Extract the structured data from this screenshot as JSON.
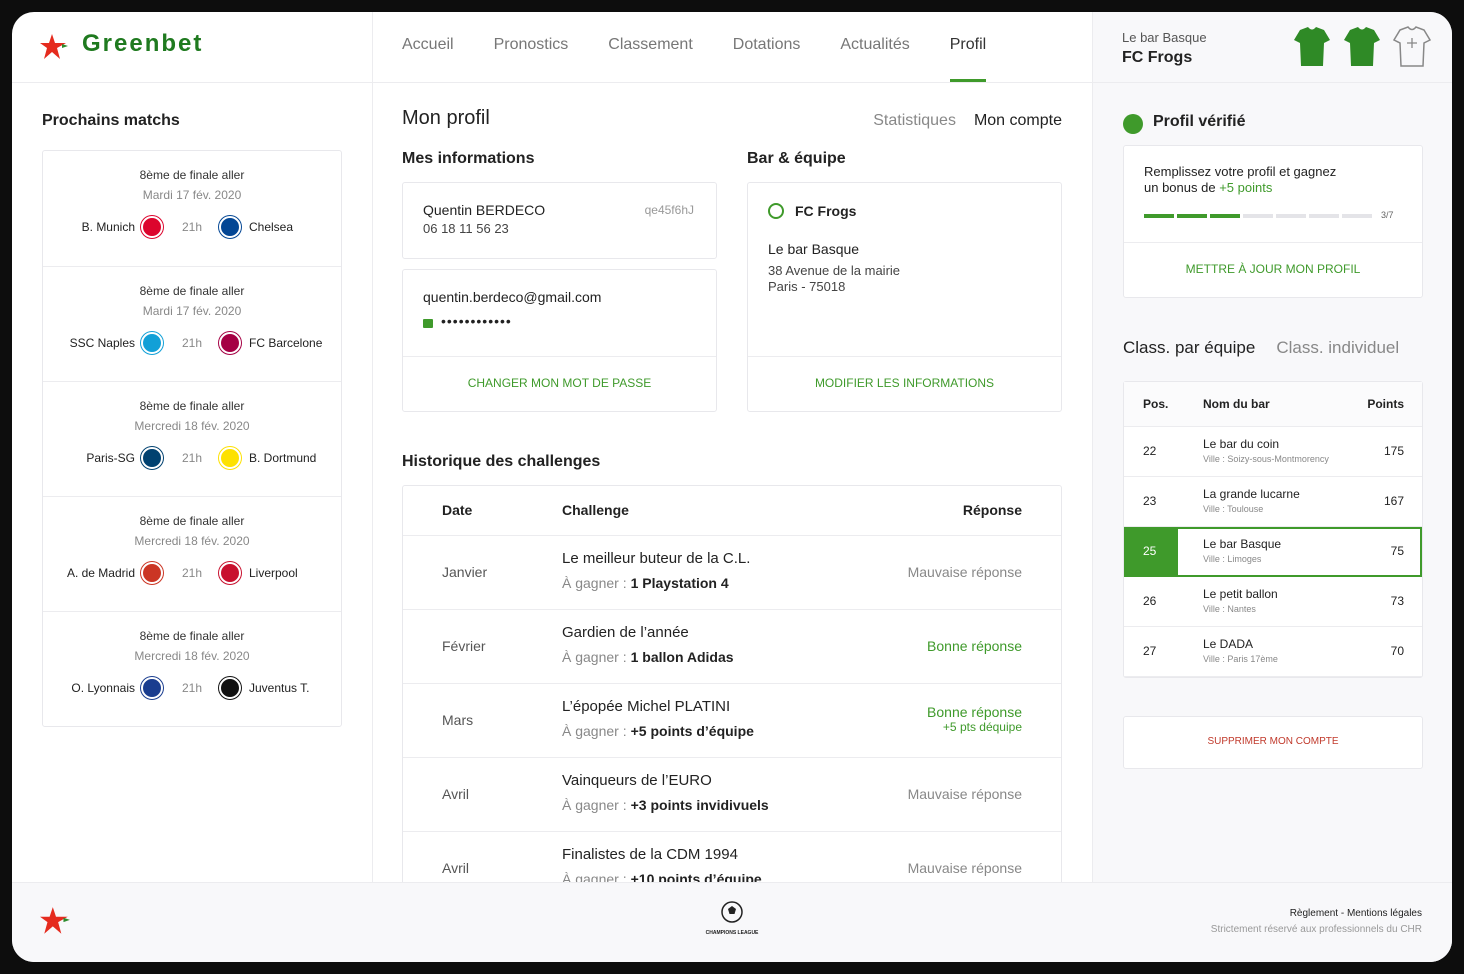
{
  "header": {
    "brand": "Greenbet",
    "nav": [
      "Accueil",
      "Pronostics",
      "Classement",
      "Dotations",
      "Actualités",
      "Profil"
    ],
    "active": 5,
    "user": {
      "bar": "Le bar Basque",
      "team": "FC Frogs"
    }
  },
  "matches": {
    "title": "Prochains matchs",
    "items": [
      {
        "round": "8ème de finale aller",
        "date": "Mardi 17 fév. 2020",
        "home": "B. Munich",
        "time": "21h",
        "away": "Chelsea",
        "home_color": "#dc052d",
        "away_color": "#034694"
      },
      {
        "round": "8ème de finale aller",
        "date": "Mardi 17 fév. 2020",
        "home": "SSC Naples",
        "time": "21h",
        "away": "FC Barcelone",
        "home_color": "#12a0d7",
        "away_color": "#a50044"
      },
      {
        "round": "8ème de finale aller",
        "date": "Mercredi 18 fév. 2020",
        "home": "Paris-SG",
        "time": "21h",
        "away": "B. Dortmund",
        "home_color": "#004170",
        "away_color": "#fde100"
      },
      {
        "round": "8ème de finale aller",
        "date": "Mercredi 18 fév. 2020",
        "home": "A. de Madrid",
        "time": "21h",
        "away": "Liverpool",
        "home_color": "#cb3524",
        "away_color": "#c8102e"
      },
      {
        "round": "8ème de finale aller",
        "date": "Mercredi 18 fév. 2020",
        "home": "O. Lyonnais",
        "time": "21h",
        "away": "Juventus T.",
        "home_color": "#1a3d8f",
        "away_color": "#111111"
      }
    ]
  },
  "profile": {
    "title": "Mon profil",
    "tabs": [
      "Statistiques",
      "Mon compte"
    ],
    "active_tab": 1,
    "info": {
      "title": "Mes informations",
      "name": "Quentin BERDECO",
      "phone": "06 18 11 56 23",
      "id": "qe45f6hJ",
      "email": "quentin.berdeco@gmail.com",
      "password": "••••••••••••",
      "action": "CHANGER MON MOT DE PASSE"
    },
    "bar": {
      "title": "Bar & équipe",
      "team": "FC Frogs",
      "bar": "Le bar Basque",
      "address": "38 Avenue de la mairie",
      "city": "Paris - 75018",
      "action": "MODIFIER LES INFORMATIONS"
    }
  },
  "history": {
    "title": "Historique des challenges",
    "columns": [
      "Date",
      "Challenge",
      "Réponse"
    ],
    "prize_label": "À gagner :",
    "rows": [
      {
        "date": "Janvier",
        "challenge": "Le meilleur buteur de la C.L.",
        "prize": "1 Playstation 4",
        "answer": "Mauvaise réponse",
        "correct": false
      },
      {
        "date": "Février",
        "challenge": "Gardien de l’année",
        "prize": "1 ballon Adidas",
        "answer": "Bonne réponse",
        "correct": true
      },
      {
        "date": "Mars",
        "challenge": "L’épopée Michel PLATINI",
        "prize": "+5 points d’équipe",
        "answer": "Bonne réponse",
        "bonus": "+5 pts déquipe",
        "correct": true
      },
      {
        "date": "Avril",
        "challenge": "Vainqueurs de l’EURO",
        "prize": "+3 points invidivuels",
        "answer": "Mauvaise réponse",
        "correct": false
      },
      {
        "date": "Avril",
        "challenge": "Finalistes de la CDM 1994",
        "prize": "+10 points d’équipe",
        "answer": "Mauvaise réponse",
        "correct": false
      }
    ]
  },
  "verified": {
    "title": "Profil vérifié",
    "text": "Remplissez votre profil et gagnez un bonus de",
    "bonus": "+5 points",
    "progress": {
      "done": 3,
      "total": 7,
      "label": "3/7"
    },
    "action": "METTRE À JOUR MON PROFIL"
  },
  "ranking": {
    "tabs": [
      "Class. par équipe",
      "Class. individuel"
    ],
    "active_tab": 0,
    "columns": [
      "Pos.",
      "Nom du bar",
      "Points"
    ],
    "rows": [
      {
        "pos": 22,
        "name": "Le bar du coin",
        "city": "Ville : Soizy-sous-Montmorency",
        "points": 175
      },
      {
        "pos": 23,
        "name": "La grande lucarne",
        "city": "Ville : Toulouse",
        "points": 167
      },
      {
        "pos": 25,
        "name": "Le bar Basque",
        "city": "Ville : Limoges",
        "points": 75
      },
      {
        "pos": 26,
        "name": "Le petit ballon",
        "city": "Ville : Nantes",
        "points": 73
      },
      {
        "pos": 27,
        "name": "Le DADA",
        "city": "Ville : Paris 17ème",
        "points": 70
      }
    ]
  },
  "delete": {
    "action": "SUPPRIMER MON COMPTE"
  },
  "footer": {
    "competition": "CHAMPIONS LEAGUE",
    "links": "Règlement - Mentions légales",
    "note": "Strictement réservé aux professionnels du CHR"
  }
}
